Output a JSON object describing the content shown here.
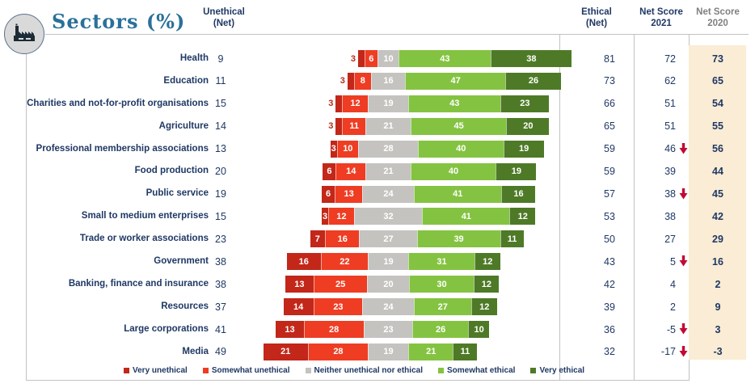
{
  "title": "Sectors (%)",
  "headers": {
    "unethical": "Unethical\n(Net)",
    "ethical": "Ethical\n(Net)",
    "net_2021": "Net Score\n2021",
    "net_2020": "Net Score\n2020"
  },
  "colors": {
    "very_unethical": "#c22719",
    "somewhat_unethical": "#ee3d23",
    "neither": "#c4c3c0",
    "somewhat_ethical": "#84c341",
    "very_ethical": "#4e7a27",
    "navy_text": "#1f3864",
    "muted_header_text": "#7f7f7f",
    "highlight_column_bg": "#faecd5",
    "decrease_arrow_red": "#c00a33",
    "title_teal": "#2a7199",
    "outside_label_red": "#b72a18"
  },
  "legend": [
    {
      "key": "very_unethical",
      "label": "Very unethical"
    },
    {
      "key": "somewhat_unethical",
      "label": "Somewhat unethical"
    },
    {
      "key": "neither",
      "label": "Neither unethical nor ethical"
    },
    {
      "key": "somewhat_ethical",
      "label": "Somewhat ethical"
    },
    {
      "key": "very_ethical",
      "label": "Very ethical"
    }
  ],
  "chart_data": {
    "type": "bar",
    "subtype": "diverging-stacked-100pct",
    "unit": "%",
    "series_names": [
      "Very unethical",
      "Somewhat unethical",
      "Neither unethical nor ethical",
      "Somewhat ethical",
      "Very ethical"
    ],
    "alignment_note": "bars centered on midpoint of the Neither segment",
    "rows": [
      {
        "sector": "Health",
        "unethical_net": 9,
        "values": [
          3,
          6,
          10,
          43,
          38
        ],
        "ethical_net": 81,
        "net_score_2021": 72,
        "net_2021_decrease_arrow": false,
        "net_score_2020": 73,
        "first_label_outside": true
      },
      {
        "sector": "Education",
        "unethical_net": 11,
        "values": [
          3,
          8,
          16,
          47,
          26
        ],
        "ethical_net": 73,
        "net_score_2021": 62,
        "net_2021_decrease_arrow": false,
        "net_score_2020": 65,
        "first_label_outside": true
      },
      {
        "sector": "Charities and not-for-profit organisations",
        "unethical_net": 15,
        "values": [
          3,
          12,
          19,
          43,
          23
        ],
        "ethical_net": 66,
        "net_score_2021": 51,
        "net_2021_decrease_arrow": false,
        "net_score_2020": 54,
        "first_label_outside": true
      },
      {
        "sector": "Agriculture",
        "unethical_net": 14,
        "values": [
          3,
          11,
          21,
          45,
          20
        ],
        "ethical_net": 65,
        "net_score_2021": 51,
        "net_2021_decrease_arrow": false,
        "net_score_2020": 55,
        "first_label_outside": true
      },
      {
        "sector": "Professional membership associations",
        "unethical_net": 13,
        "values": [
          3,
          10,
          28,
          40,
          19
        ],
        "ethical_net": 59,
        "net_score_2021": 46,
        "net_2021_decrease_arrow": true,
        "net_score_2020": 56,
        "first_label_outside": false
      },
      {
        "sector": "Food production",
        "unethical_net": 20,
        "values": [
          6,
          14,
          21,
          40,
          19
        ],
        "ethical_net": 59,
        "net_score_2021": 39,
        "net_2021_decrease_arrow": false,
        "net_score_2020": 44,
        "first_label_outside": false
      },
      {
        "sector": "Public service",
        "unethical_net": 19,
        "values": [
          6,
          13,
          24,
          41,
          16
        ],
        "ethical_net": 57,
        "net_score_2021": 38,
        "net_2021_decrease_arrow": true,
        "net_score_2020": 45,
        "first_label_outside": false
      },
      {
        "sector": "Small to medium enterprises",
        "unethical_net": 15,
        "values": [
          3,
          12,
          32,
          41,
          12
        ],
        "ethical_net": 53,
        "net_score_2021": 38,
        "net_2021_decrease_arrow": false,
        "net_score_2020": 42,
        "first_label_outside": false
      },
      {
        "sector": "Trade or worker associations",
        "unethical_net": 23,
        "values": [
          7,
          16,
          27,
          39,
          11
        ],
        "ethical_net": 50,
        "net_score_2021": 27,
        "net_2021_decrease_arrow": false,
        "net_score_2020": 29,
        "first_label_outside": false
      },
      {
        "sector": "Government",
        "unethical_net": 38,
        "values": [
          16,
          22,
          19,
          31,
          12
        ],
        "ethical_net": 43,
        "net_score_2021": 5,
        "net_2021_decrease_arrow": true,
        "net_score_2020": 16,
        "first_label_outside": false
      },
      {
        "sector": "Banking, finance and insurance",
        "unethical_net": 38,
        "values": [
          13,
          25,
          20,
          30,
          12
        ],
        "ethical_net": 42,
        "net_score_2021": 4,
        "net_2021_decrease_arrow": false,
        "net_score_2020": 2,
        "first_label_outside": false
      },
      {
        "sector": "Resources",
        "unethical_net": 37,
        "values": [
          14,
          23,
          24,
          27,
          12
        ],
        "ethical_net": 39,
        "net_score_2021": 2,
        "net_2021_decrease_arrow": false,
        "net_score_2020": 9,
        "first_label_outside": false
      },
      {
        "sector": "Large corporations",
        "unethical_net": 41,
        "values": [
          13,
          28,
          23,
          26,
          10
        ],
        "ethical_net": 36,
        "net_score_2021": -5,
        "net_2021_decrease_arrow": true,
        "net_score_2020": 3,
        "first_label_outside": false
      },
      {
        "sector": "Media",
        "unethical_net": 49,
        "values": [
          21,
          28,
          19,
          21,
          11
        ],
        "ethical_net": 32,
        "net_score_2021": -17,
        "net_2021_decrease_arrow": true,
        "net_score_2020": -3,
        "first_label_outside": false
      }
    ]
  }
}
